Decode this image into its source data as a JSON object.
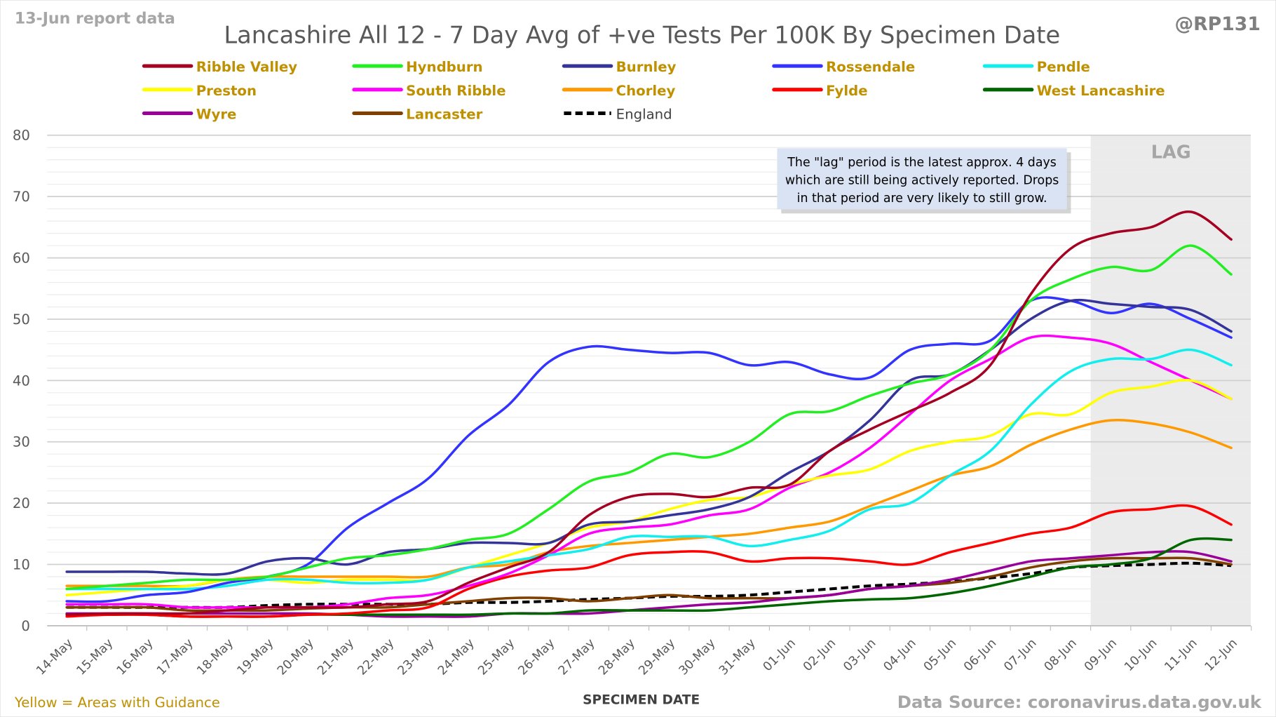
{
  "header": {
    "report_label": "13-Jun report data",
    "handle": "@RP131"
  },
  "footer": {
    "guidance_note": "Yellow = Areas with Guidance",
    "source": "Data Source: coronavirus.data.gov.uk"
  },
  "annotation": {
    "lag_label": "LAG",
    "note_lines": [
      "The \"lag\" period is the latest approx. 4 days",
      "which are still being actively reported.  Drops",
      "in that period are very likely to still grow."
    ]
  },
  "colors": {
    "legend_text": "#bf9000",
    "lag_shade": "#ebebeb",
    "note_bg": "#dae3f3"
  },
  "chart_data": {
    "type": "line",
    "title": "Lancashire All 12 - 7 Day Avg of +ve Tests Per 100K By Specimen Date",
    "xlabel": "SPECIMEN DATE",
    "ylabel": "",
    "ylim": [
      0,
      80
    ],
    "yticks": [
      0,
      10,
      20,
      30,
      40,
      50,
      60,
      70,
      80
    ],
    "grid": true,
    "legend_position": "top",
    "lag_start_index": 25.5,
    "x": [
      "14-May",
      "15-May",
      "16-May",
      "17-May",
      "18-May",
      "19-May",
      "20-May",
      "21-May",
      "22-May",
      "23-May",
      "24-May",
      "25-May",
      "26-May",
      "27-May",
      "28-May",
      "29-May",
      "30-May",
      "31-May",
      "01-Jun",
      "02-Jun",
      "03-Jun",
      "04-Jun",
      "05-Jun",
      "06-Jun",
      "07-Jun",
      "08-Jun",
      "09-Jun",
      "10-Jun",
      "11-Jun",
      "12-Jun"
    ],
    "series": [
      {
        "name": "Ribble Valley",
        "color": "#a50021",
        "dashed": false,
        "values": [
          1.8,
          2,
          2,
          2,
          2.5,
          3,
          3,
          3,
          3.5,
          4,
          7,
          9.5,
          12,
          18,
          21,
          21.5,
          21,
          22.5,
          23,
          28.5,
          32,
          35,
          38,
          42.5,
          54,
          61.5,
          64,
          65,
          67.5,
          63
        ]
      },
      {
        "name": "Hyndburn",
        "color": "#22ee22",
        "dashed": false,
        "values": [
          6,
          6.5,
          7,
          7.5,
          7.5,
          8,
          9.5,
          11,
          11.5,
          12.5,
          14,
          15,
          19,
          23.5,
          25,
          28,
          27.5,
          30,
          34.5,
          35,
          37.5,
          39.5,
          41,
          45,
          53,
          56.5,
          58.5,
          58,
          62,
          57.3
        ]
      },
      {
        "name": "Burnley",
        "color": "#333399",
        "dashed": false,
        "values": [
          8.8,
          8.8,
          8.8,
          8.5,
          8.5,
          10.5,
          11,
          10,
          12,
          12.5,
          13.5,
          13.5,
          13.5,
          16.5,
          17,
          18,
          19,
          21,
          25,
          28.5,
          33.5,
          40,
          41,
          45,
          50,
          53,
          52.5,
          52,
          51.5,
          48
        ]
      },
      {
        "name": "Rossendale",
        "color": "#3333ff",
        "dashed": false,
        "values": [
          4,
          4,
          5,
          5.5,
          7,
          8,
          10,
          16,
          20,
          24,
          31,
          36,
          43,
          45.5,
          45,
          44.5,
          44.5,
          42.5,
          43,
          41,
          40.5,
          45,
          46,
          46.5,
          53,
          53,
          51,
          52.5,
          50,
          47
        ]
      },
      {
        "name": "Pendle",
        "color": "#11eeee",
        "dashed": false,
        "values": [
          6,
          6,
          6,
          6,
          6.5,
          7.5,
          7.5,
          7,
          7,
          7.5,
          9.5,
          10.5,
          11.5,
          12.5,
          14.5,
          14.5,
          14.5,
          13,
          14,
          15.5,
          19,
          20,
          24.5,
          28.5,
          36,
          41.5,
          43.5,
          43.5,
          45,
          42.5
        ]
      },
      {
        "name": "Preston",
        "color": "#ffff00",
        "dashed": false,
        "values": [
          5,
          5.5,
          6,
          6.5,
          7.5,
          7.5,
          7,
          7.5,
          7.5,
          7.5,
          9.5,
          11.5,
          13.5,
          16,
          17,
          19,
          20.5,
          21,
          23,
          24.5,
          25.5,
          28.5,
          30,
          31,
          34.5,
          34.5,
          38,
          39,
          40,
          37
        ]
      },
      {
        "name": "South Ribble",
        "color": "#ff00ff",
        "dashed": false,
        "values": [
          3.5,
          3.5,
          3.5,
          3,
          3,
          3,
          3,
          3.5,
          4.5,
          5,
          6.5,
          8.5,
          11.5,
          15,
          16,
          16.5,
          18,
          19,
          22.5,
          25,
          29,
          34.5,
          40,
          43.5,
          47,
          47,
          46,
          43,
          40,
          37
        ]
      },
      {
        "name": "Chorley",
        "color": "#ff9900",
        "dashed": false,
        "values": [
          6.5,
          6.5,
          6.5,
          6.5,
          7.5,
          8,
          8,
          8,
          8,
          8,
          9.5,
          10,
          12,
          13,
          13.5,
          14,
          14.5,
          15,
          16,
          17,
          19.5,
          22,
          24.5,
          26,
          29.5,
          32,
          33.5,
          33,
          31.5,
          29
        ]
      },
      {
        "name": "Fylde",
        "color": "#ff0000",
        "dashed": false,
        "values": [
          1.5,
          1.8,
          1.8,
          1.5,
          1.5,
          1.5,
          1.8,
          2,
          2.5,
          3,
          6,
          8,
          9,
          9.5,
          11.5,
          12,
          12,
          10.5,
          11,
          11,
          10.5,
          10,
          12,
          13.5,
          15,
          16,
          18.5,
          19,
          19.5,
          16.5
        ]
      },
      {
        "name": "West Lancashire",
        "color": "#006600",
        "dashed": false,
        "values": [
          1.8,
          1.8,
          1.8,
          1.5,
          1.5,
          1.5,
          1.8,
          1.8,
          1.8,
          1.8,
          1.8,
          2,
          2,
          2.5,
          2.5,
          2.5,
          2.5,
          3,
          3.5,
          4,
          4.3,
          4.5,
          5.3,
          6.5,
          8,
          9.5,
          10,
          11,
          14,
          14
        ]
      },
      {
        "name": "Wyre",
        "color": "#990099",
        "dashed": false,
        "values": [
          2,
          2,
          2,
          2,
          2,
          2,
          2,
          1.8,
          1.5,
          1.5,
          1.5,
          2,
          2,
          2,
          2.5,
          3,
          3.5,
          3.8,
          4.5,
          5,
          6,
          6.5,
          7.5,
          9,
          10.5,
          11,
          11.5,
          12,
          12,
          10.5
        ]
      },
      {
        "name": "Lancaster",
        "color": "#7f3f00",
        "dashed": false,
        "values": [
          3,
          3,
          3,
          2.5,
          2.5,
          2.5,
          2.8,
          3,
          3,
          3.5,
          4,
          4.5,
          4.5,
          4,
          4.5,
          5,
          4.5,
          4.5,
          4.5,
          5,
          6,
          6.5,
          7,
          8,
          9.5,
          10.5,
          11,
          11,
          11,
          10
        ]
      },
      {
        "name": "England",
        "color": "#000000",
        "dashed": true,
        "values": [
          3,
          3,
          3,
          3,
          3,
          3.3,
          3.5,
          3.5,
          3.5,
          3.5,
          3.8,
          3.8,
          4,
          4.3,
          4.5,
          4.8,
          4.8,
          5,
          5.5,
          6,
          6.5,
          6.8,
          7.2,
          7.8,
          8.5,
          9.5,
          9.8,
          10,
          10.2,
          9.8
        ]
      }
    ]
  }
}
